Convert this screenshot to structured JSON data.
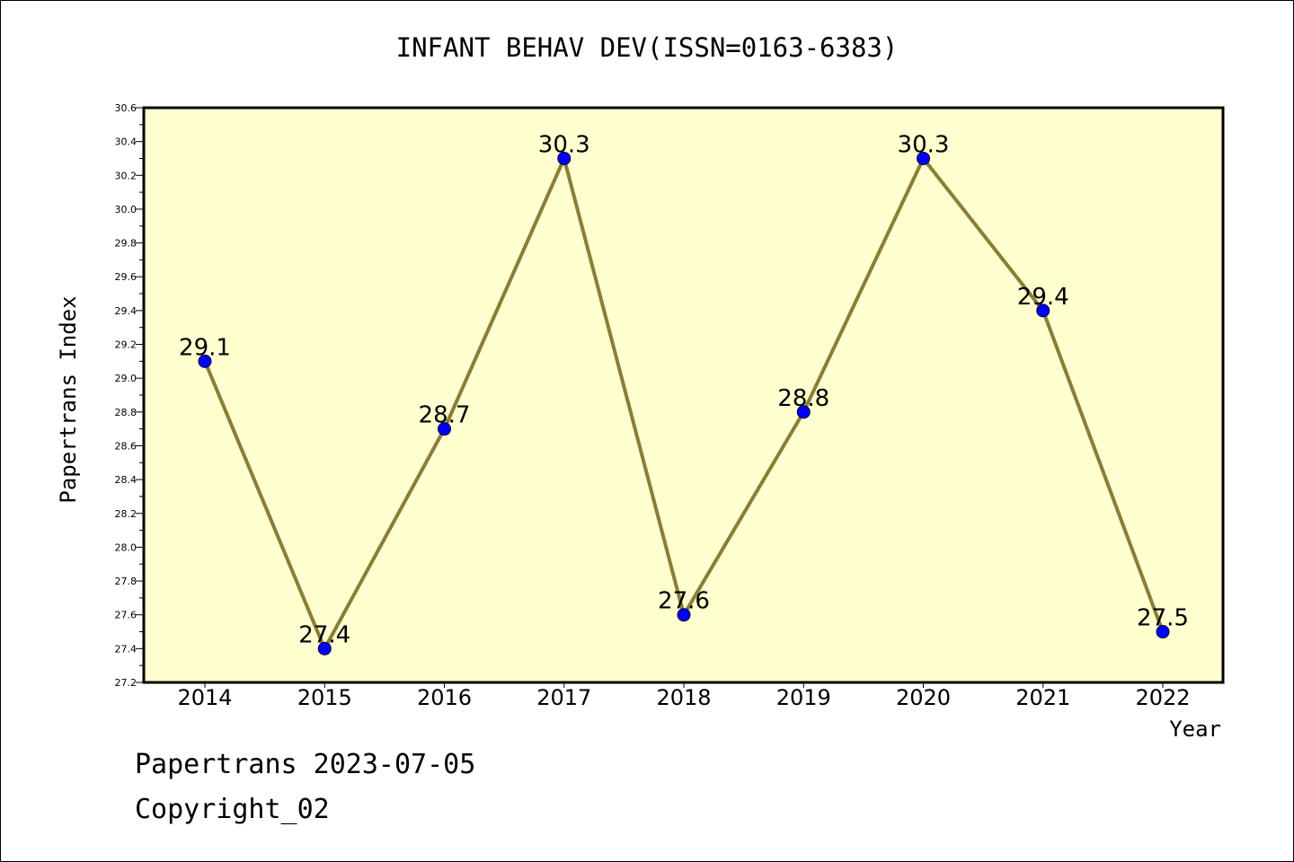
{
  "chart_data": {
    "type": "line",
    "title": "INFANT BEHAV DEV(ISSN=0163-6383)",
    "xlabel": "Year",
    "ylabel": "Papertrans Index",
    "categories": [
      "2014",
      "2015",
      "2016",
      "2017",
      "2018",
      "2019",
      "2020",
      "2021",
      "2022"
    ],
    "series": [
      {
        "values": [
          29.1,
          27.4,
          28.7,
          30.3,
          27.6,
          28.8,
          30.3,
          29.4,
          27.5
        ],
        "labels": [
          "29.1",
          "27.4",
          "28.7",
          "30.3",
          "27.6",
          "28.8",
          "30.3",
          "29.4",
          "27.5"
        ]
      }
    ],
    "ylim": [
      27.2,
      30.6
    ],
    "yticks": [
      "27.2",
      "27.4",
      "27.6",
      "27.8",
      "28.0",
      "28.2",
      "28.4",
      "28.6",
      "28.8",
      "29.0",
      "29.2",
      "29.4",
      "29.6",
      "29.8",
      "30.0",
      "30.2",
      "30.4",
      "30.6"
    ],
    "grid": false,
    "colors": {
      "plot_background": "#ffffd0",
      "line": "#8b7d35",
      "marker": "#0000ff"
    }
  },
  "footer": {
    "line1": "Papertrans 2023-07-05",
    "line2": "Copyright_02"
  }
}
